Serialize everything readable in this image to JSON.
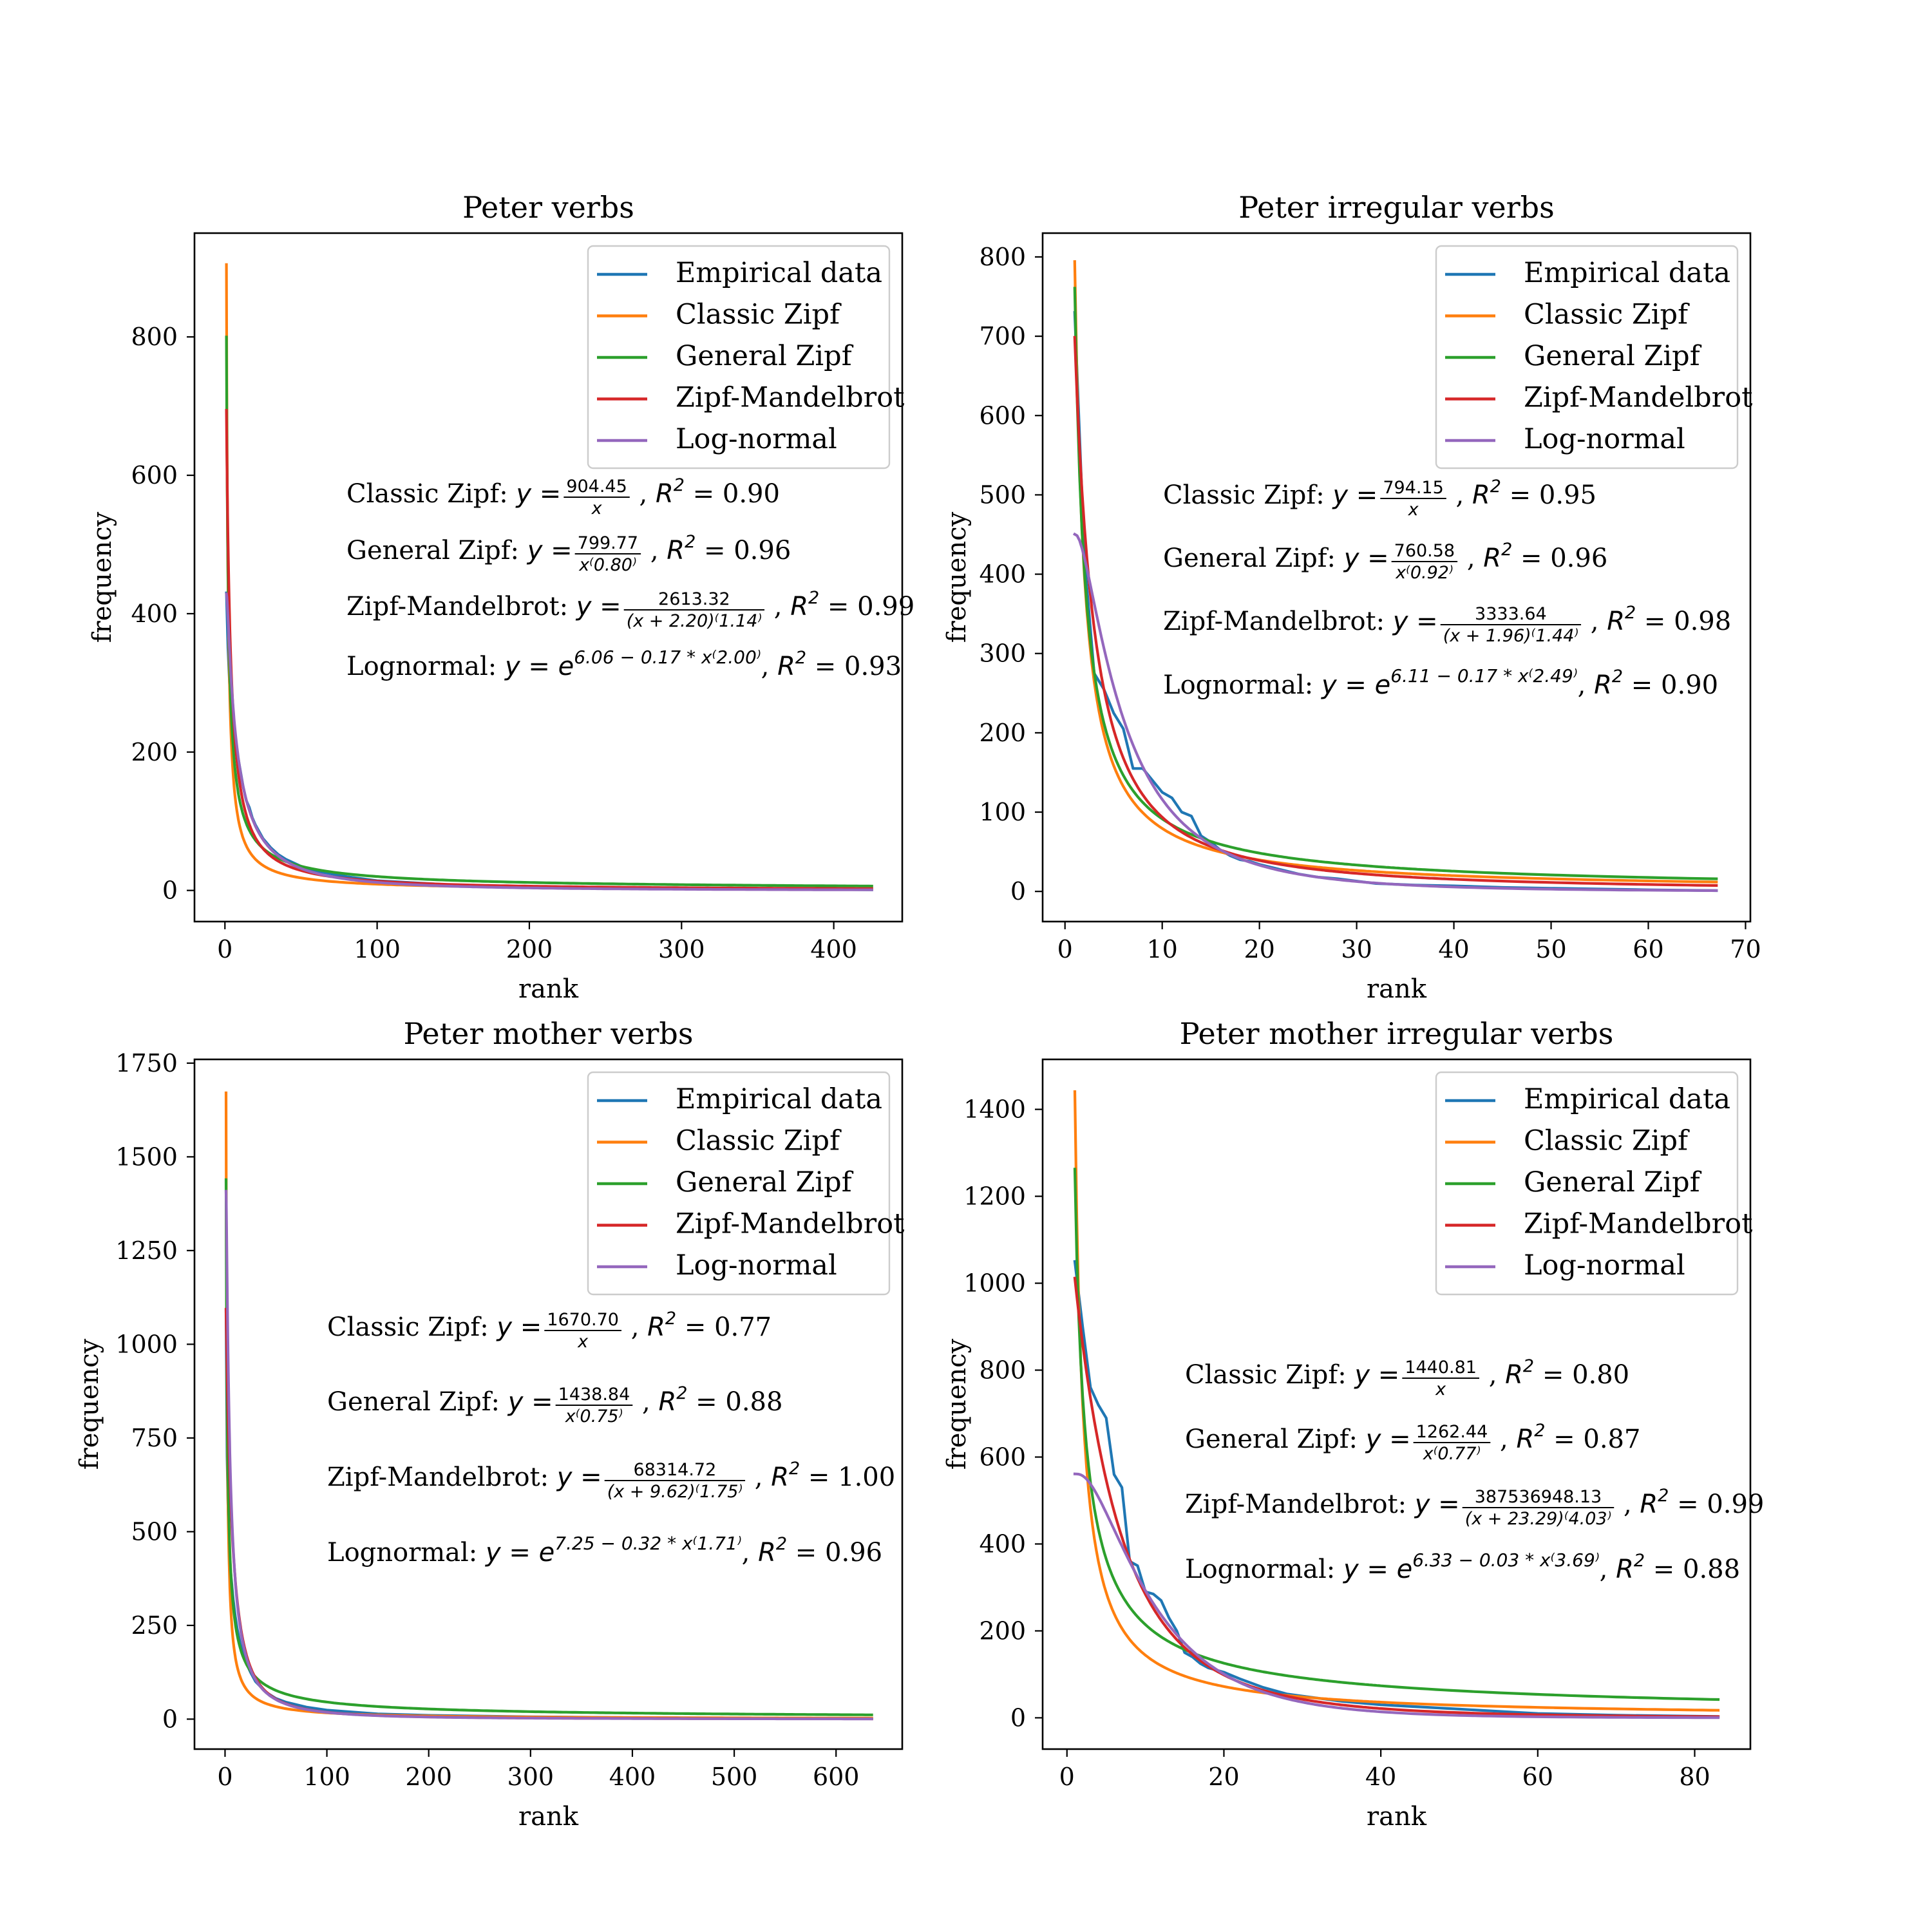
{
  "colors": {
    "empirical": "#1f77b4",
    "classic": "#ff7f0e",
    "general": "#2ca02c",
    "mandelbrot": "#d62728",
    "lognormal": "#9467bd"
  },
  "chart_data": [
    {
      "type": "line",
      "title": "Peter verbs",
      "xlabel": "rank",
      "ylabel": "frequency",
      "xlim": [
        -20,
        445
      ],
      "ylim": [
        -45,
        950
      ],
      "xticks": [
        0,
        100,
        200,
        300,
        400
      ],
      "yticks": [
        0,
        200,
        400,
        600,
        800
      ],
      "grid": false,
      "legend_position": "top-right",
      "n_ranks": 425,
      "empirical_points": [
        [
          1,
          430
        ],
        [
          2,
          350
        ],
        [
          3,
          300
        ],
        [
          4,
          270
        ],
        [
          5,
          240
        ],
        [
          6,
          225
        ],
        [
          7,
          215
        ],
        [
          8,
          200
        ],
        [
          10,
          175
        ],
        [
          12,
          150
        ],
        [
          14,
          130
        ],
        [
          16,
          120
        ],
        [
          18,
          105
        ],
        [
          20,
          95
        ],
        [
          25,
          75
        ],
        [
          30,
          62
        ],
        [
          35,
          52
        ],
        [
          40,
          45
        ],
        [
          50,
          35
        ],
        [
          60,
          28
        ],
        [
          80,
          20
        ],
        [
          100,
          14
        ],
        [
          150,
          8
        ],
        [
          200,
          5
        ],
        [
          300,
          3
        ],
        [
          425,
          1
        ]
      ],
      "series": [
        {
          "name": "Empirical data",
          "color_key": "empirical",
          "kind": "empirical"
        },
        {
          "name": "Classic Zipf",
          "color_key": "classic",
          "kind": "classic",
          "params": {
            "a": 904.45
          }
        },
        {
          "name": "General Zipf",
          "color_key": "general",
          "kind": "general",
          "params": {
            "a": 799.77,
            "b": 0.8
          }
        },
        {
          "name": "Zipf-Mandelbrot",
          "color_key": "mandelbrot",
          "kind": "mandelbrot",
          "params": {
            "a": 2613.32,
            "c": 2.2,
            "b": 1.14
          }
        },
        {
          "name": "Log-normal",
          "color_key": "lognormal",
          "kind": "lognormal",
          "params": {
            "mu": 6.06,
            "k": 0.17,
            "p": 2.0
          }
        }
      ],
      "annotations": [
        {
          "label": "Classic Zipf: ",
          "lhs": "y = ",
          "num": "904.45",
          "den": "x",
          "r2": "0.90"
        },
        {
          "label": "General Zipf: ",
          "lhs": "y = ",
          "num": "799.77",
          "den": "x⁽0.80⁾",
          "r2": "0.96"
        },
        {
          "label": "Zipf-Mandelbrot: ",
          "lhs": "y = ",
          "num": "2613.32",
          "den": "(x + 2.20)⁽1.14⁾",
          "r2": "0.99"
        },
        {
          "label": "Lognormal: ",
          "lhs": "y = e",
          "exp": "6.06 − 0.17 * x⁽2.00⁾",
          "r2": "0.93"
        }
      ]
    },
    {
      "type": "line",
      "title": "Peter irregular verbs",
      "xlabel": "rank",
      "ylabel": "frequency",
      "xlim": [
        -2.3,
        70.5
      ],
      "ylim": [
        -38,
        830
      ],
      "xticks": [
        0,
        10,
        20,
        30,
        40,
        50,
        60,
        70
      ],
      "yticks": [
        0,
        100,
        200,
        300,
        400,
        500,
        600,
        700,
        800
      ],
      "grid": false,
      "legend_position": "top-right",
      "n_ranks": 67,
      "empirical_points": [
        [
          1,
          730
        ],
        [
          2,
          420
        ],
        [
          3,
          275
        ],
        [
          4,
          255
        ],
        [
          5,
          225
        ],
        [
          6,
          205
        ],
        [
          7,
          155
        ],
        [
          8,
          155
        ],
        [
          9,
          140
        ],
        [
          10,
          125
        ],
        [
          11,
          118
        ],
        [
          12,
          100
        ],
        [
          13,
          95
        ],
        [
          14,
          70
        ],
        [
          15,
          62
        ],
        [
          16,
          52
        ],
        [
          17,
          45
        ],
        [
          18,
          40
        ],
        [
          19,
          38
        ],
        [
          20,
          34
        ],
        [
          22,
          28
        ],
        [
          24,
          22
        ],
        [
          26,
          18
        ],
        [
          28,
          16
        ],
        [
          30,
          13
        ],
        [
          32,
          10
        ],
        [
          34,
          9
        ],
        [
          36,
          8
        ],
        [
          40,
          7
        ],
        [
          45,
          5
        ],
        [
          50,
          4
        ],
        [
          55,
          3
        ],
        [
          60,
          2
        ],
        [
          67,
          1
        ]
      ],
      "series": [
        {
          "name": "Empirical data",
          "color_key": "empirical",
          "kind": "empirical"
        },
        {
          "name": "Classic Zipf",
          "color_key": "classic",
          "kind": "classic",
          "params": {
            "a": 794.15
          }
        },
        {
          "name": "General Zipf",
          "color_key": "general",
          "kind": "general",
          "params": {
            "a": 760.58,
            "b": 0.92
          }
        },
        {
          "name": "Zipf-Mandelbrot",
          "color_key": "mandelbrot",
          "kind": "mandelbrot",
          "params": {
            "a": 3333.64,
            "c": 1.96,
            "b": 1.44
          }
        },
        {
          "name": "Log-normal",
          "color_key": "lognormal",
          "kind": "lognormal",
          "params": {
            "mu": 6.11,
            "k": 0.17,
            "p": 2.49
          }
        }
      ],
      "annotations": [
        {
          "label": "Classic Zipf: ",
          "lhs": "y = ",
          "num": "794.15",
          "den": "x",
          "r2": "0.95"
        },
        {
          "label": "General Zipf: ",
          "lhs": "y = ",
          "num": "760.58",
          "den": "x⁽0.92⁾",
          "r2": "0.96"
        },
        {
          "label": "Zipf-Mandelbrot: ",
          "lhs": "y = ",
          "num": "3333.64",
          "den": "(x + 1.96)⁽1.44⁾",
          "r2": "0.98"
        },
        {
          "label": "Lognormal: ",
          "lhs": "y = e",
          "exp": "6.11 − 0.17 * x⁽2.49⁾",
          "r2": "0.90"
        }
      ]
    },
    {
      "type": "line",
      "title": "Peter mother verbs",
      "xlabel": "rank",
      "ylabel": "frequency",
      "xlim": [
        -30,
        665
      ],
      "ylim": [
        -80,
        1760
      ],
      "xticks": [
        0,
        100,
        200,
        300,
        400,
        500,
        600
      ],
      "yticks": [
        0,
        250,
        500,
        750,
        1000,
        1250,
        1500,
        1750
      ],
      "grid": false,
      "legend_position": "top-right",
      "n_ranks": 635,
      "empirical_points": [
        [
          1,
          1090
        ],
        [
          2,
          700
        ],
        [
          3,
          560
        ],
        [
          4,
          470
        ],
        [
          5,
          420
        ],
        [
          6,
          380
        ],
        [
          8,
          320
        ],
        [
          10,
          275
        ],
        [
          12,
          240
        ],
        [
          15,
          200
        ],
        [
          20,
          155
        ],
        [
          25,
          125
        ],
        [
          30,
          100
        ],
        [
          40,
          72
        ],
        [
          50,
          55
        ],
        [
          60,
          45
        ],
        [
          80,
          32
        ],
        [
          100,
          24
        ],
        [
          150,
          14
        ],
        [
          200,
          10
        ],
        [
          300,
          6
        ],
        [
          400,
          4
        ],
        [
          500,
          3
        ],
        [
          635,
          1
        ]
      ],
      "series": [
        {
          "name": "Empirical data",
          "color_key": "empirical",
          "kind": "empirical"
        },
        {
          "name": "Classic Zipf",
          "color_key": "classic",
          "kind": "classic",
          "params": {
            "a": 1670.7
          }
        },
        {
          "name": "General Zipf",
          "color_key": "general",
          "kind": "general",
          "params": {
            "a": 1438.84,
            "b": 0.75
          }
        },
        {
          "name": "Zipf-Mandelbrot",
          "color_key": "mandelbrot",
          "kind": "mandelbrot",
          "params": {
            "a": 68314.72,
            "c": 9.62,
            "b": 1.75
          }
        },
        {
          "name": "Log-normal",
          "color_key": "lognormal",
          "kind": "lognormal",
          "params": {
            "mu": 7.25,
            "k": 0.32,
            "p": 1.71
          }
        }
      ],
      "annotations": [
        {
          "label": "Classic Zipf: ",
          "lhs": "y = ",
          "num": "1670.70",
          "den": "x",
          "r2": "0.77"
        },
        {
          "label": "General Zipf: ",
          "lhs": "y = ",
          "num": "1438.84",
          "den": "x⁽0.75⁾",
          "r2": "0.88"
        },
        {
          "label": "Zipf-Mandelbrot: ",
          "lhs": "y = ",
          "num": "68314.72",
          "den": "(x + 9.62)⁽1.75⁾",
          "r2": "1.00"
        },
        {
          "label": "Lognormal: ",
          "lhs": "y = e",
          "exp": "7.25 − 0.32 * x⁽1.71⁾",
          "r2": "0.96"
        }
      ]
    },
    {
      "type": "line",
      "title": "Peter mother irregular verbs",
      "xlabel": "rank",
      "ylabel": "frequency",
      "xlim": [
        -3.1,
        87.1
      ],
      "ylim": [
        -72,
        1515
      ],
      "xticks": [
        0,
        20,
        40,
        60,
        80
      ],
      "yticks": [
        0,
        200,
        400,
        600,
        800,
        1000,
        1200,
        1400
      ],
      "grid": false,
      "legend_position": "top-right",
      "n_ranks": 83,
      "empirical_points": [
        [
          1,
          1050
        ],
        [
          2,
          900
        ],
        [
          3,
          760
        ],
        [
          4,
          720
        ],
        [
          5,
          690
        ],
        [
          6,
          560
        ],
        [
          7,
          530
        ],
        [
          8,
          360
        ],
        [
          9,
          350
        ],
        [
          10,
          290
        ],
        [
          11,
          285
        ],
        [
          12,
          270
        ],
        [
          13,
          230
        ],
        [
          14,
          200
        ],
        [
          15,
          150
        ],
        [
          16,
          140
        ],
        [
          17,
          125
        ],
        [
          18,
          115
        ],
        [
          20,
          105
        ],
        [
          22,
          90
        ],
        [
          25,
          70
        ],
        [
          28,
          55
        ],
        [
          30,
          50
        ],
        [
          35,
          38
        ],
        [
          40,
          30
        ],
        [
          45,
          25
        ],
        [
          50,
          20
        ],
        [
          55,
          15
        ],
        [
          60,
          10
        ],
        [
          70,
          6
        ],
        [
          83,
          3
        ]
      ],
      "series": [
        {
          "name": "Empirical data",
          "color_key": "empirical",
          "kind": "empirical"
        },
        {
          "name": "Classic Zipf",
          "color_key": "classic",
          "kind": "classic",
          "params": {
            "a": 1440.81
          }
        },
        {
          "name": "General Zipf",
          "color_key": "general",
          "kind": "general",
          "params": {
            "a": 1262.44,
            "b": 0.77
          }
        },
        {
          "name": "Zipf-Mandelbrot",
          "color_key": "mandelbrot",
          "kind": "mandelbrot",
          "params": {
            "a": 387536948.13,
            "c": 23.29,
            "b": 4.03
          }
        },
        {
          "name": "Log-normal",
          "color_key": "lognormal",
          "kind": "lognormal",
          "params": {
            "mu": 6.33,
            "k": 0.03,
            "p": 3.69
          }
        }
      ],
      "annotations": [
        {
          "label": "Classic Zipf: ",
          "lhs": "y = ",
          "num": "1440.81",
          "den": "x",
          "r2": "0.80"
        },
        {
          "label": "General Zipf: ",
          "lhs": "y = ",
          "num": "1262.44",
          "den": "x⁽0.77⁾",
          "r2": "0.87"
        },
        {
          "label": "Zipf-Mandelbrot: ",
          "lhs": "y = ",
          "num": "387536948.13",
          "den": "(x + 23.29)⁽4.03⁾",
          "r2": "0.99"
        },
        {
          "label": "Lognormal: ",
          "lhs": "y = e",
          "exp": "6.33 − 0.03 * x⁽3.69⁾",
          "r2": "0.88"
        }
      ]
    }
  ]
}
